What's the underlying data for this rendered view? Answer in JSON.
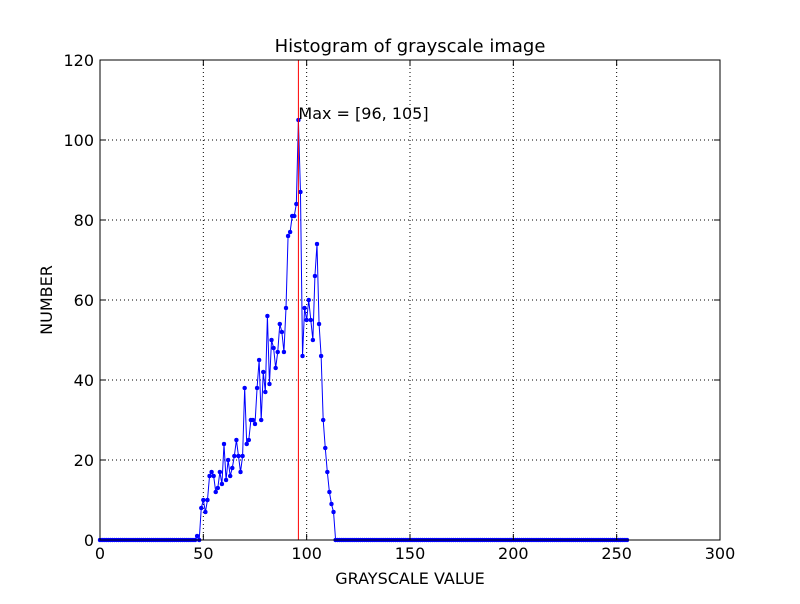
{
  "chart_data": {
    "type": "line",
    "title": "Histogram of grayscale image",
    "xlabel": "GRAYSCALE VALUE",
    "ylabel": "NUMBER",
    "xlim": [
      0,
      300
    ],
    "ylim": [
      0,
      120
    ],
    "xticks": [
      0,
      50,
      100,
      150,
      200,
      250,
      300
    ],
    "yticks": [
      0,
      20,
      40,
      60,
      80,
      100,
      120
    ],
    "grid": true,
    "annotation": {
      "text": "Max = [96, 105]",
      "x": 96,
      "y": 105
    },
    "vline": {
      "x": 96,
      "color": "#ff0000"
    },
    "series_color": "#0000ff",
    "series": [
      {
        "x_start": 0,
        "values": [
          0,
          0,
          0,
          0,
          0,
          0,
          0,
          0,
          0,
          0,
          0,
          0,
          0,
          0,
          0,
          0,
          0,
          0,
          0,
          0,
          0,
          0,
          0,
          0,
          0,
          0,
          0,
          0,
          0,
          0,
          0,
          0,
          0,
          0,
          0,
          0,
          0,
          0,
          0,
          0,
          0,
          0,
          0,
          0,
          0,
          0,
          0,
          1,
          0,
          8,
          10,
          7,
          10,
          16,
          17,
          16,
          12,
          13,
          17,
          14,
          24,
          15,
          20,
          16,
          18,
          21,
          25,
          21,
          17,
          21,
          38,
          24,
          25,
          30,
          30,
          29,
          38,
          45,
          30,
          42,
          37,
          56,
          39,
          50,
          48,
          43,
          47,
          54,
          52,
          47,
          58,
          76,
          77,
          81,
          81,
          84,
          105,
          87,
          46,
          58,
          55,
          60,
          55,
          50,
          66,
          74,
          54,
          46,
          30,
          23,
          17,
          12,
          9,
          7,
          0,
          0,
          0,
          0,
          0,
          0,
          0,
          0,
          0,
          0,
          0,
          0,
          0,
          0,
          0,
          0,
          0,
          0,
          0,
          0,
          0,
          0,
          0,
          0,
          0,
          0,
          0,
          0,
          0,
          0,
          0,
          0,
          0,
          0,
          0,
          0,
          0,
          0,
          0,
          0,
          0,
          0,
          0,
          0,
          0,
          0,
          0,
          0,
          0,
          0,
          0,
          0,
          0,
          0,
          0,
          0,
          0,
          0,
          0,
          0,
          0,
          0,
          0,
          0,
          0,
          0,
          0,
          0,
          0,
          0,
          0,
          0,
          0,
          0,
          0,
          0,
          0,
          0,
          0,
          0,
          0,
          0,
          0,
          0,
          0,
          0,
          0,
          0,
          0,
          0,
          0,
          0,
          0,
          0,
          0,
          0,
          0,
          0,
          0,
          0,
          0,
          0,
          0,
          0,
          0,
          0,
          0,
          0,
          0,
          0,
          0,
          0,
          0,
          0,
          0,
          0,
          0,
          0,
          0,
          0,
          0,
          0,
          0,
          0,
          0,
          0,
          0,
          0,
          0,
          0,
          0,
          0,
          0,
          0,
          0,
          0,
          0,
          0,
          0,
          0,
          0,
          0
        ]
      }
    ]
  }
}
